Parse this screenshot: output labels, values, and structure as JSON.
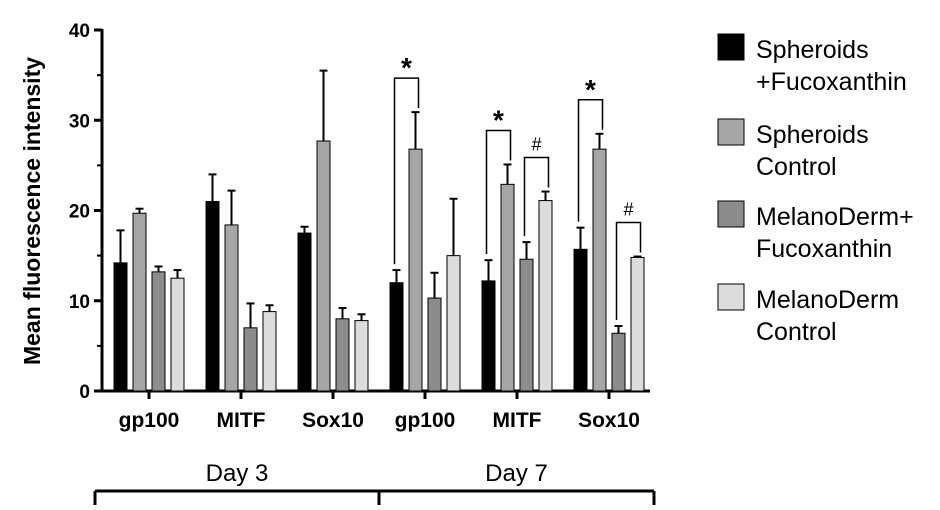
{
  "chart_data": {
    "type": "bar",
    "ylabel": "Mean fluorescence intensity",
    "ylim": [
      0,
      40
    ],
    "yticks": [
      "0",
      "10",
      "20",
      "30",
      "40"
    ],
    "categories": [
      "gp100",
      "MITF",
      "Sox10",
      "gp100",
      "MITF",
      "Sox10"
    ],
    "groups": [
      {
        "label": "Day 3",
        "categories": [
          0,
          1,
          2
        ]
      },
      {
        "label": "Day 7",
        "categories": [
          3,
          4,
          5
        ]
      }
    ],
    "series": [
      {
        "name": "Spheroids +Fucoxanthin",
        "legend_lines": [
          "Spheroids",
          "+Fucoxanthin"
        ],
        "color": "#000000",
        "values": [
          14.2,
          21.0,
          17.5,
          12.0,
          12.2,
          15.7
        ],
        "errors": [
          3.6,
          3.0,
          0.7,
          1.4,
          2.3,
          2.4
        ]
      },
      {
        "name": "Spheroids Control",
        "legend_lines": [
          "Spheroids",
          "Control"
        ],
        "color": "#a6a6a6",
        "values": [
          19.7,
          18.4,
          27.7,
          26.8,
          22.9,
          26.8
        ],
        "errors": [
          0.5,
          3.8,
          7.8,
          4.1,
          2.2,
          1.7
        ]
      },
      {
        "name": "MelanoDerm+ Fucoxanthin",
        "legend_lines": [
          "MelanoDerm+",
          "Fucoxanthin"
        ],
        "color": "#8c8c8c",
        "values": [
          13.2,
          7.0,
          8.0,
          10.3,
          14.6,
          6.4
        ],
        "errors": [
          0.6,
          2.7,
          1.2,
          2.8,
          1.9,
          0.8
        ]
      },
      {
        "name": "MelanoDerm Control",
        "legend_lines": [
          "MelanoDerm",
          "Control"
        ],
        "color": "#dcdcdc",
        "values": [
          12.5,
          8.8,
          7.8,
          15.0,
          21.1,
          14.8
        ],
        "errors": [
          0.9,
          0.7,
          0.7,
          6.3,
          1.0,
          0.1
        ]
      }
    ],
    "annotations": [
      {
        "category": 3,
        "series": [
          0,
          1
        ],
        "text": "*"
      },
      {
        "category": 4,
        "series": [
          0,
          1
        ],
        "text": "*"
      },
      {
        "category": 4,
        "series": [
          2,
          3
        ],
        "text": "#"
      },
      {
        "category": 5,
        "series": [
          0,
          1
        ],
        "text": "*"
      },
      {
        "category": 5,
        "series": [
          2,
          3
        ],
        "text": "#"
      }
    ],
    "grid": false,
    "legend": "right"
  }
}
